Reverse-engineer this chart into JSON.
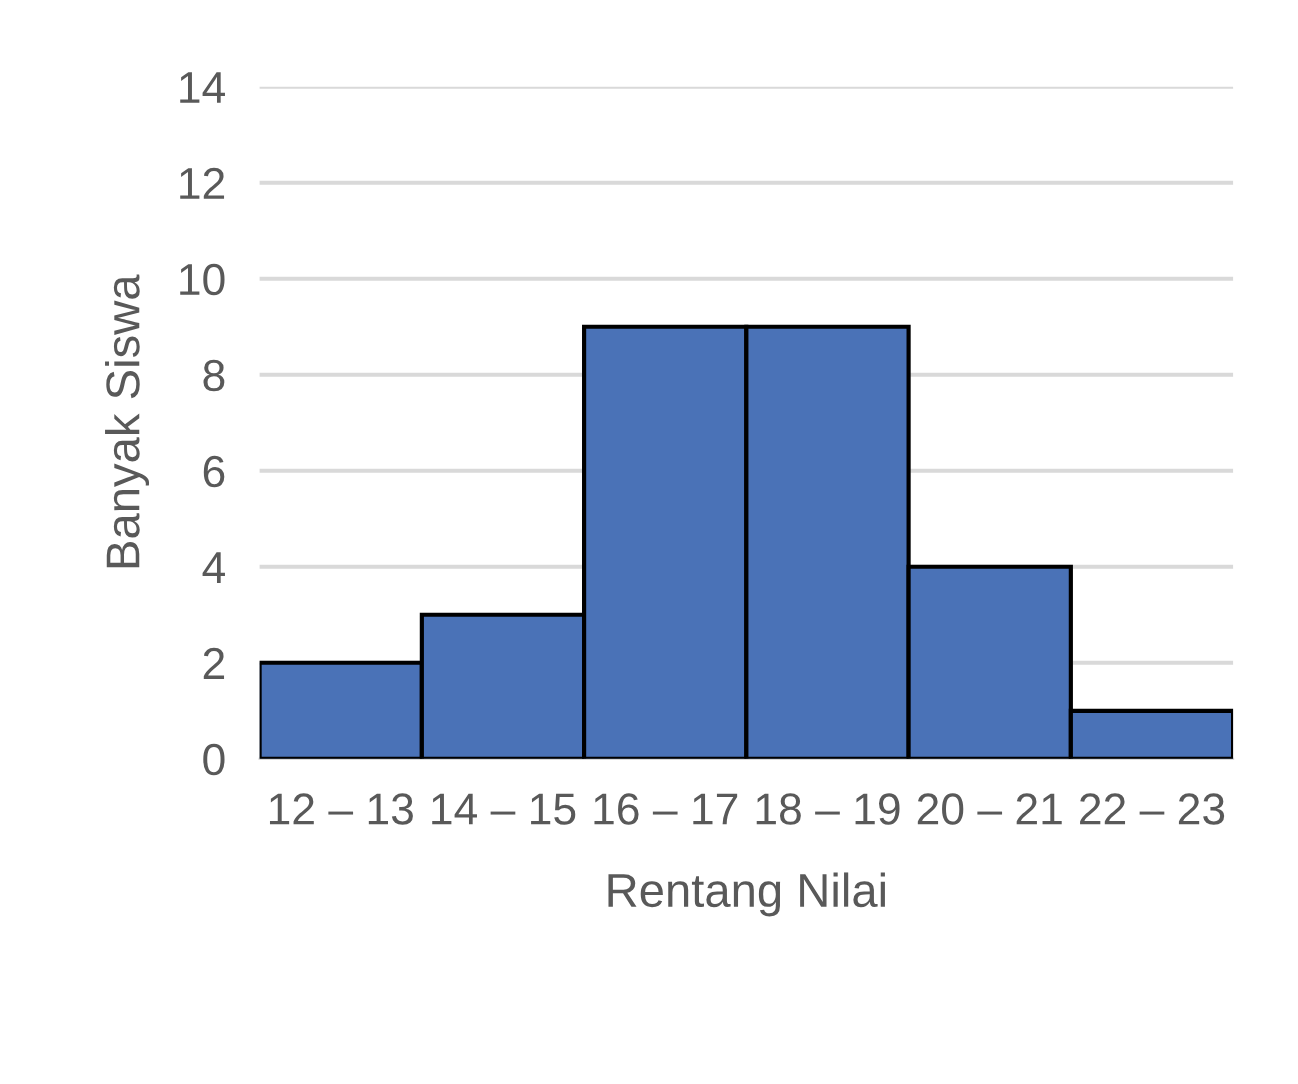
{
  "chart_data": {
    "type": "bar",
    "xlabel": "Rentang Nilai",
    "ylabel": "Banyak Siswa",
    "categories": [
      "12 – 13",
      "14 – 15",
      "16 – 17",
      "18 – 19",
      "20 – 21",
      "22 – 23"
    ],
    "values": [
      2,
      3,
      9,
      9,
      4,
      1
    ],
    "color": "#4a72b7",
    "ylim": [
      0,
      14
    ],
    "yticks": [
      0,
      2,
      4,
      6,
      8,
      10,
      12,
      14
    ],
    "grid": "y",
    "legend": false
  }
}
